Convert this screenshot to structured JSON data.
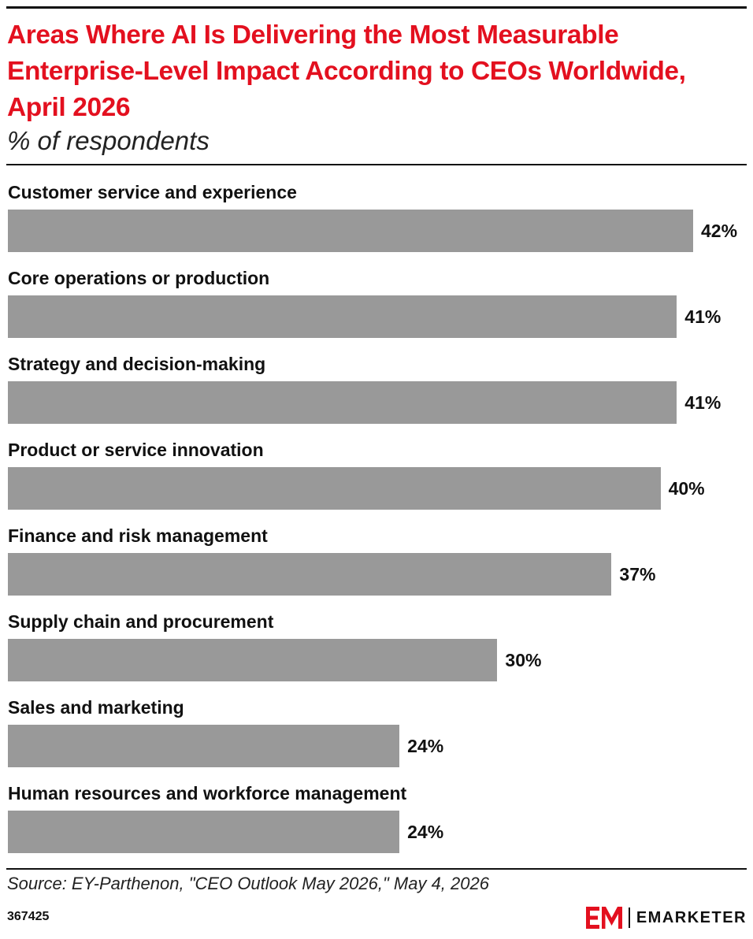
{
  "header": {
    "title": "Areas Where AI Is Delivering the Most Measurable Enterprise-Level Impact According to CEOs Worldwide, April 2026",
    "subtitle": "% of respondents"
  },
  "chart_data": {
    "type": "bar",
    "orientation": "horizontal",
    "categories": [
      "Customer service and experience",
      "Core operations or production",
      "Strategy and decision-making",
      "Product or service innovation",
      "Finance and risk management",
      "Supply chain and procurement",
      "Sales and marketing",
      "Human resources and workforce management"
    ],
    "values": [
      42,
      41,
      41,
      40,
      37,
      30,
      24,
      24
    ],
    "value_labels": [
      "42%",
      "41%",
      "41%",
      "40%",
      "37%",
      "30%",
      "24%",
      "24%"
    ],
    "bar_color": "#999999",
    "grid": false
  },
  "footer": {
    "source": "Source: EY-Parthenon, \"CEO Outlook May 2026,\" May 4, 2026",
    "chart_id": "367425",
    "brand_name": "EMARKETER",
    "brand_mark_color": "#e3101f"
  }
}
